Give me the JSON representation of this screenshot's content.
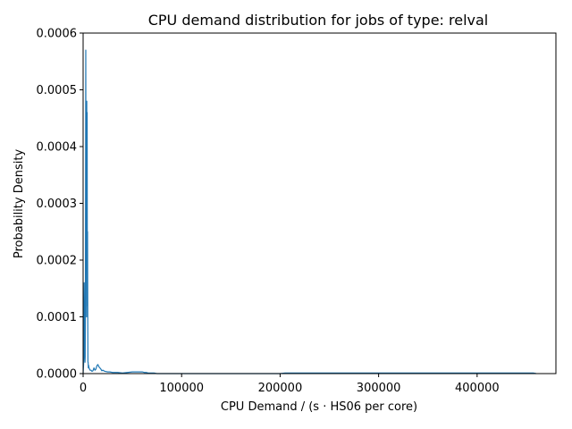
{
  "chart_data": {
    "type": "line",
    "title": "CPU demand distribution for jobs of type: relval",
    "xlabel": "CPU Demand / (s · HS06 per core)",
    "ylabel": "Probability Density",
    "xlim": [
      0,
      480000
    ],
    "ylim": [
      0,
      0.0006
    ],
    "xticks": [
      0,
      100000,
      200000,
      300000,
      400000
    ],
    "xtick_labels": [
      "0",
      "100000",
      "200000",
      "300000",
      "400000"
    ],
    "yticks": [
      0,
      0.0001,
      0.0002,
      0.0003,
      0.0004,
      0.0005,
      0.0006
    ],
    "ytick_labels": [
      "0.0000",
      "0.0001",
      "0.0002",
      "0.0003",
      "0.0004",
      "0.0005",
      "0.0006"
    ],
    "grid": false,
    "color": "#1f77b4",
    "series": [
      {
        "x": [
          0,
          600,
          1100,
          1400,
          1700,
          1900,
          2100,
          2300,
          2500,
          2700,
          2900,
          3100,
          3300,
          3500,
          3700,
          3900,
          4100,
          4300,
          4500,
          4700,
          4900,
          5100,
          5300,
          5500,
          6000,
          7000,
          8000,
          9000,
          10000,
          11000,
          12000,
          13000,
          14000,
          15000,
          16000,
          17000,
          18000,
          19000,
          20000,
          22000,
          25000,
          27000,
          30000,
          35000,
          40000,
          45000,
          50000,
          55000,
          60000,
          62000,
          64000,
          66000,
          70000,
          72000,
          75000,
          80000,
          100000,
          150000,
          200000,
          205000,
          208000,
          210000,
          300000,
          400000,
          450000,
          457000,
          460000
        ],
        "y": [
          0,
          2e-05,
          0.00016,
          8e-05,
          2.8e-05,
          2e-05,
          3e-05,
          0.00011,
          0.00035,
          0.00057,
          0.0002,
          0.0003,
          0.00045,
          0.0001,
          0.00048,
          0.00012,
          0.00046,
          0.00015,
          0.00025,
          0.0001,
          2e-05,
          2e-05,
          1e-05,
          1.5e-05,
          1e-05,
          6e-06,
          6e-06,
          4e-06,
          5e-06,
          1e-05,
          6e-06,
          8e-06,
          1.4e-05,
          1.6e-05,
          1.2e-05,
          1e-05,
          8e-06,
          5e-06,
          6e-06,
          4e-06,
          3e-06,
          3e-06,
          2e-06,
          2e-06,
          1e-06,
          2e-06,
          3e-06,
          3e-06,
          3e-06,
          2e-06,
          2e-06,
          1e-06,
          1e-06,
          1e-06,
          0,
          0,
          0,
          0,
          0,
          1e-06,
          1e-06,
          1e-06,
          1e-06,
          1e-06,
          1e-06,
          1e-06,
          0
        ]
      }
    ]
  }
}
